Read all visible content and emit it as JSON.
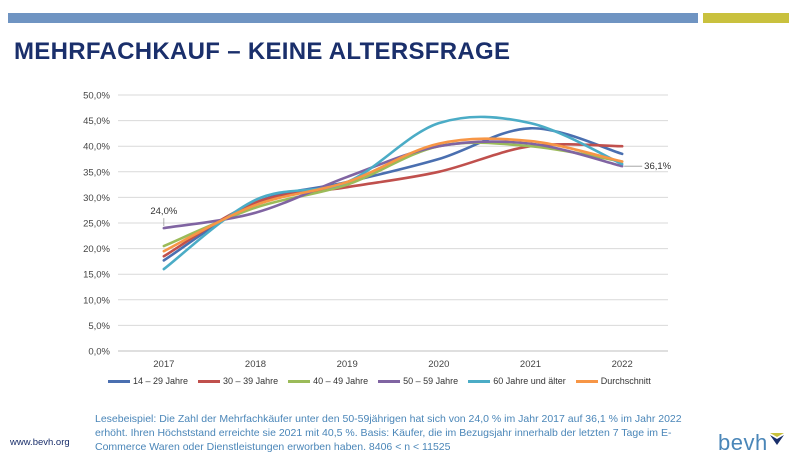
{
  "slide": {
    "title": "MEHRFACHKAUF – KEINE ALTERSFRAGE",
    "footnote": "Lesebeispiel: Die Zahl der Mehrfachkäufer unter den 50-59jährigen hat sich von 24,0 % im Jahr 2017 auf 36,1 % im Jahr 2022 erhöht. Ihren Höchststand erreichte sie 2021 mit 40,5 %. Basis: Käufer, die im Bezugsjahr innerhalb der letzten 7 Tage im E-Commerce Waren oder Dienstleistungen erworben haben. 8406 < n < 11525",
    "website": "www.bevh.org",
    "logo_text": "bevh"
  },
  "colors": {
    "accent_blue": "#6f94c2",
    "accent_yellow": "#c9c13e",
    "title": "#1a2f6b",
    "footnote": "#4a86b8"
  },
  "chart_data": {
    "type": "line",
    "title": "",
    "xlabel": "",
    "ylabel": "",
    "x": [
      "2017",
      "2018",
      "2019",
      "2020",
      "2021",
      "2022"
    ],
    "ylim": [
      0,
      50
    ],
    "yticks": [
      "0,0%",
      "5,0%",
      "10,0%",
      "15,0%",
      "20,0%",
      "25,0%",
      "30,0%",
      "35,0%",
      "40,0%",
      "45,0%",
      "50,0%"
    ],
    "grid": true,
    "legend_position": "bottom",
    "series": [
      {
        "name": "14 – 29 Jahre",
        "color": "#4a6fb0",
        "values": [
          17.7,
          29.0,
          33.0,
          37.5,
          43.5,
          38.5
        ]
      },
      {
        "name": "30 – 39 Jahre",
        "color": "#c0504d",
        "values": [
          18.5,
          29.0,
          32.0,
          35.0,
          40.0,
          40.0
        ]
      },
      {
        "name": "40 – 49 Jahre",
        "color": "#9bbb59",
        "values": [
          20.5,
          28.0,
          32.5,
          40.0,
          40.0,
          37.0
        ]
      },
      {
        "name": "50 – 59 Jahre",
        "color": "#8064a2",
        "values": [
          24.0,
          27.0,
          34.0,
          40.0,
          40.5,
          36.1
        ]
      },
      {
        "name": "60 Jahre und älter",
        "color": "#4bacc6",
        "values": [
          16.0,
          29.5,
          33.0,
          44.5,
          44.5,
          36.5
        ]
      },
      {
        "name": "Durchschnitt",
        "color": "#f79646",
        "values": [
          19.5,
          28.5,
          33.0,
          40.5,
          41.0,
          37.0
        ]
      }
    ],
    "annotations": [
      {
        "series": "50 – 59 Jahre",
        "x": "2017",
        "text": "24,0%"
      },
      {
        "series": "50 – 59 Jahre",
        "x": "2022",
        "text": "36,1%"
      }
    ]
  }
}
